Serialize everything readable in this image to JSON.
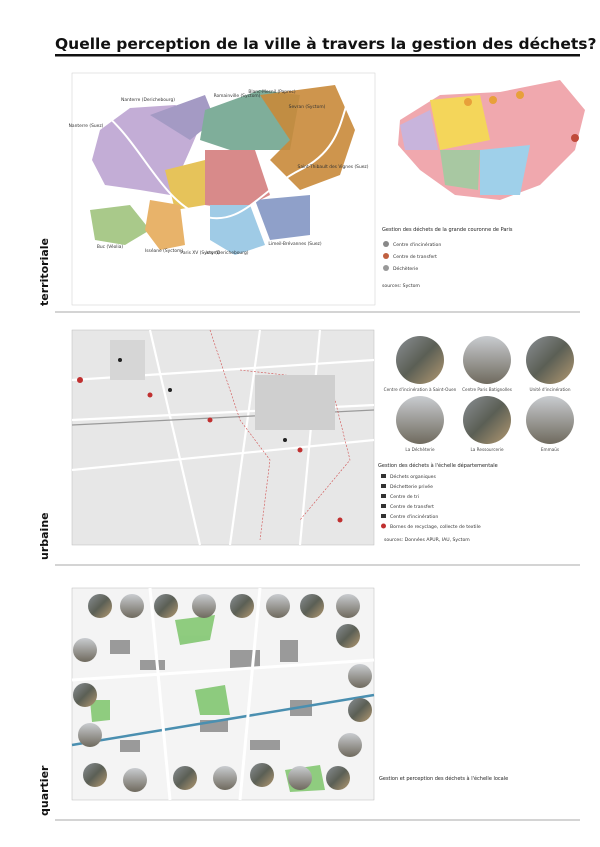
{
  "header": {
    "title": "Quelle perception de la ville à travers la gestion des déchets?"
  },
  "sections": [
    {
      "label": "territoriale",
      "pins": [
        "Nanterre (Derichebourg)",
        "Romainville (Syctom)",
        "Blanc-Mesnil (Paprec)",
        "Sevran (Syctom)",
        "Nanterre (Suez)",
        "Saint-Thibault des Vignes (Suez)",
        "Buc (Véolia)",
        "Isséane (Syctom)",
        "Paris XV (Syctom)",
        "Ivry (Derichebourg)",
        "Limeil-Brévannes (Suez)"
      ],
      "legend": {
        "title": "Gestion des déchets de la grande couronne de Paris",
        "items": [
          "Centre d'incinération",
          "Centre de transfert",
          "Déchèterie"
        ],
        "source": "sources: Syctom"
      }
    },
    {
      "label": "urbaine",
      "photos": [
        "Centre d'incinération à Saint-Ouen",
        "Centre Paris Batignolles",
        "Unité d'incinération",
        "La Déchèterie",
        "La Ressourcerie",
        "Emmaüs"
      ],
      "legend": {
        "title": "Gestion des déchets à l'échelle départementale",
        "items": [
          "Déchets organiques",
          "Déchetterie privée",
          "Centre de tri",
          "Centre de transfert",
          "Centre d'incinération",
          "Bornes de recyclage, collecte de textile"
        ],
        "source": "sources: Données APUR, IAU, Syctom"
      }
    },
    {
      "label": "quartier",
      "legend": {
        "title": "Gestion et perception des déchets à l'échelle locale"
      }
    }
  ]
}
